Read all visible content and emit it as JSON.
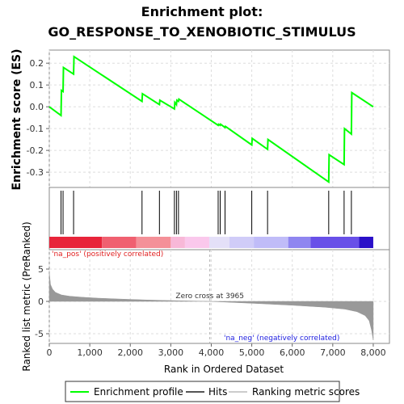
{
  "chart_data": [
    {
      "type": "line",
      "title_line1": "Enrichment plot:",
      "title_line2": "GO_RESPONSE_TO_XENOBIOTIC_STIMULUS",
      "ylabel": "Enrichment score (ES)",
      "ylim": [
        -0.37,
        0.26
      ],
      "yticks": [
        0.2,
        0.1,
        0.0,
        -0.1,
        -0.2,
        -0.3
      ],
      "ytick_labels": [
        "0.2",
        "0.1",
        "0.0",
        "-0.1",
        "-0.2",
        "-0.3"
      ],
      "grid": true,
      "series": [
        {
          "name": "Enrichment profile",
          "color": "#00ff00",
          "x": [
            0,
            290,
            300,
            340,
            350,
            600,
            610,
            2290,
            2300,
            2720,
            2730,
            3090,
            3100,
            3140,
            3150,
            3190,
            3200,
            4170,
            4180,
            4220,
            4230,
            4340,
            4350,
            5000,
            5010,
            5390,
            5400,
            6900,
            6910,
            7280,
            7290,
            7460,
            7470,
            8000
          ],
          "y": [
            0.0,
            -0.04,
            0.075,
            0.07,
            0.18,
            0.15,
            0.23,
            0.025,
            0.06,
            0.01,
            0.03,
            -0.01,
            0.02,
            0.01,
            0.03,
            0.025,
            0.035,
            -0.085,
            -0.08,
            -0.085,
            -0.08,
            -0.095,
            -0.09,
            -0.175,
            -0.145,
            -0.195,
            -0.15,
            -0.345,
            -0.22,
            -0.265,
            -0.1,
            -0.125,
            0.065,
            0.0
          ]
        }
      ]
    },
    {
      "type": "scatter",
      "series_name": "Hits",
      "hit_positions": [
        290,
        340,
        600,
        2290,
        2720,
        3090,
        3140,
        3190,
        4170,
        4220,
        4340,
        5000,
        5390,
        6900,
        7280,
        7460
      ]
    },
    {
      "type": "heatmap",
      "label_pos": "'na_pos' (positively correlated)",
      "label_neg": "'na_neg' (negatively correlated)",
      "bands": [
        {
          "from": 0,
          "to": 1300,
          "color": "#e8243a"
        },
        {
          "from": 1300,
          "to": 2150,
          "color": "#f06070"
        },
        {
          "from": 2150,
          "to": 3000,
          "color": "#f49098"
        },
        {
          "from": 3000,
          "to": 3350,
          "color": "#f8b8d8"
        },
        {
          "from": 3350,
          "to": 3950,
          "color": "#fac8ec"
        },
        {
          "from": 3950,
          "to": 4450,
          "color": "#e4e0f8"
        },
        {
          "from": 4450,
          "to": 5050,
          "color": "#d0ccf8"
        },
        {
          "from": 5050,
          "to": 5900,
          "color": "#c0bcf8"
        },
        {
          "from": 5900,
          "to": 6450,
          "color": "#8f86f0"
        },
        {
          "from": 6450,
          "to": 7650,
          "color": "#6850e8"
        },
        {
          "from": 7650,
          "to": 8000,
          "color": "#2a10c8"
        }
      ]
    },
    {
      "type": "area",
      "xlabel": "Rank in Ordered Dataset",
      "ylabel": "Ranked list metric (PreRanked)",
      "xlim": [
        0,
        8400
      ],
      "ylim": [
        -6.5,
        8
      ],
      "xticks": [
        0,
        1000,
        2000,
        3000,
        4000,
        5000,
        6000,
        7000,
        8000
      ],
      "xtick_labels": [
        "0",
        "1,000",
        "2,000",
        "3,000",
        "4,000",
        "5,000",
        "6,000",
        "7,000",
        "8,000"
      ],
      "yticks": [
        5,
        0,
        -5
      ],
      "ytick_labels": [
        "5",
        "0",
        "-5"
      ],
      "zero_cross_label": "Zero cross at 3965",
      "zero_cross": 3965,
      "metric_x": [
        0,
        30,
        80,
        150,
        300,
        500,
        800,
        1200,
        1800,
        2500,
        3200,
        3965,
        4500,
        5200,
        6000,
        6800,
        7300,
        7600,
        7800,
        7900,
        7960,
        8000
      ],
      "metric_y": [
        4.5,
        2.6,
        1.9,
        1.4,
        1.0,
        0.8,
        0.65,
        0.5,
        0.35,
        0.2,
        0.1,
        0.0,
        -0.15,
        -0.35,
        -0.6,
        -0.9,
        -1.2,
        -1.6,
        -2.2,
        -3.0,
        -4.5,
        -6.0
      ],
      "color": "#999999",
      "grid": true
    }
  ],
  "legend": {
    "items": [
      {
        "label": "Enrichment profile",
        "color": "#00ff00"
      },
      {
        "label": "Hits",
        "color": "#555555"
      },
      {
        "label": "Ranking metric scores",
        "color": "#cccccc"
      }
    ]
  }
}
